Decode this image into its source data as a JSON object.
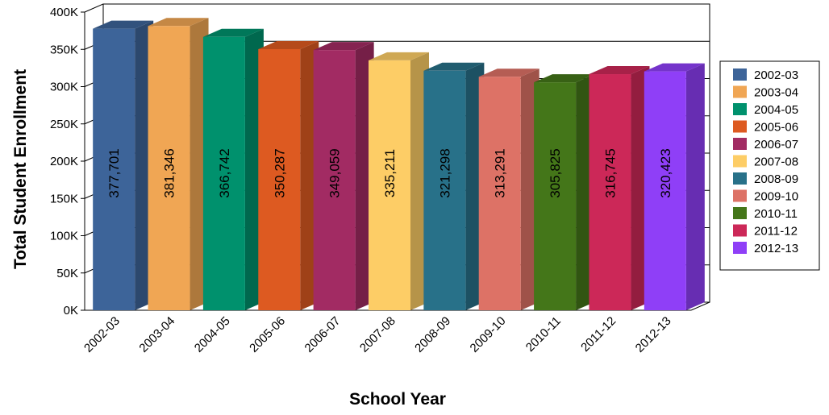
{
  "chart_data": {
    "type": "bar",
    "title": "",
    "xlabel": "School Year",
    "ylabel": "Total Student Enrollment",
    "categories": [
      "2002-03",
      "2003-04",
      "2004-05",
      "2005-06",
      "2006-07",
      "2007-08",
      "2008-09",
      "2009-10",
      "2010-11",
      "2011-12",
      "2012-13"
    ],
    "values": [
      377701,
      381346,
      366742,
      350287,
      349059,
      335211,
      321298,
      313291,
      305825,
      316745,
      320423
    ],
    "value_labels": [
      "377,701",
      "381,346",
      "366,742",
      "350,287",
      "349,059",
      "335,211",
      "321,298",
      "313,291",
      "305,825",
      "316,745",
      "320,423"
    ],
    "colors": [
      "#3d6499",
      "#f0a654",
      "#00916d",
      "#dd5a21",
      "#a22b63",
      "#fdcd66",
      "#287189",
      "#dd7266",
      "#447619",
      "#cc2858",
      "#8f3ff7"
    ],
    "ylim": [
      0,
      400000
    ],
    "yticks": [
      0,
      50000,
      100000,
      150000,
      200000,
      250000,
      300000,
      350000,
      400000
    ],
    "ytick_labels": [
      "0K",
      "50K",
      "100K",
      "150K",
      "200K",
      "250K",
      "300K",
      "350K",
      "400K"
    ],
    "legend": {
      "position": "right",
      "entries": [
        "2002-03",
        "2003-04",
        "2004-05",
        "2005-06",
        "2006-07",
        "2007-08",
        "2008-09",
        "2009-10",
        "2010-11",
        "2011-12",
        "2012-13"
      ]
    },
    "grid": true,
    "style": "3d"
  }
}
